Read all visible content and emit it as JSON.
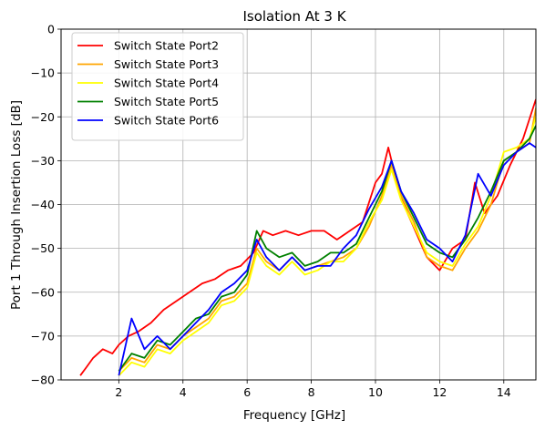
{
  "chart_data": {
    "type": "line",
    "title": "Isolation At 3 K",
    "xlabel": "Frequency [GHz]",
    "ylabel": "Port 1 Through Insertion Loss [dB]",
    "xlim": [
      0.2,
      15.0
    ],
    "ylim": [
      -80,
      0
    ],
    "xticks": [
      2,
      4,
      6,
      8,
      10,
      12,
      14
    ],
    "yticks": [
      0,
      -10,
      -20,
      -30,
      -40,
      -50,
      -60,
      -70,
      -80
    ],
    "grid": true,
    "legend_position": "top-left",
    "series": [
      {
        "name": "Switch State Port2",
        "color": "#ff0000",
        "x": [
          0.8,
          1.0,
          1.2,
          1.5,
          1.8,
          2.0,
          2.3,
          2.6,
          3.0,
          3.4,
          3.8,
          4.2,
          4.6,
          5.0,
          5.4,
          5.8,
          6.2,
          6.5,
          6.8,
          7.2,
          7.6,
          8.0,
          8.4,
          8.8,
          9.2,
          9.6,
          10.0,
          10.2,
          10.4,
          10.7,
          11.0,
          11.3,
          11.6,
          12.0,
          12.4,
          12.8,
          13.1,
          13.4,
          13.8,
          14.2,
          14.6,
          15.0
        ],
        "y": [
          -79,
          -77,
          -75,
          -73,
          -74,
          -72,
          -70,
          -69,
          -67,
          -64,
          -62,
          -60,
          -58,
          -57,
          -55,
          -54,
          -51,
          -46,
          -47,
          -46,
          -47,
          -46,
          -46,
          -48,
          -46,
          -44,
          -35,
          -33,
          -27,
          -36,
          -42,
          -47,
          -52,
          -55,
          -50,
          -48,
          -35,
          -42,
          -38,
          -31,
          -25,
          -16
        ]
      },
      {
        "name": "Switch State Port3",
        "color": "#ffa500",
        "x": [
          2.0,
          2.4,
          2.8,
          3.2,
          3.6,
          4.0,
          4.4,
          4.8,
          5.2,
          5.6,
          6.0,
          6.3,
          6.6,
          7.0,
          7.4,
          7.8,
          8.2,
          8.6,
          9.0,
          9.4,
          9.8,
          10.2,
          10.5,
          10.8,
          11.2,
          11.6,
          12.0,
          12.4,
          12.8,
          13.2,
          13.6,
          14.0,
          14.4,
          14.8,
          15.0
        ],
        "y": [
          -78,
          -75,
          -76,
          -72,
          -73,
          -70,
          -68,
          -66,
          -62,
          -61,
          -58,
          -50,
          -53,
          -55,
          -52,
          -55,
          -54,
          -53,
          -52,
          -50,
          -45,
          -38,
          -31,
          -38,
          -44,
          -52,
          -54,
          -55,
          -50,
          -46,
          -40,
          -30,
          -28,
          -26,
          -18
        ]
      },
      {
        "name": "Switch State Port4",
        "color": "#ffff00",
        "x": [
          2.0,
          2.4,
          2.8,
          3.2,
          3.6,
          4.0,
          4.4,
          4.8,
          5.2,
          5.6,
          6.0,
          6.3,
          6.6,
          7.0,
          7.4,
          7.8,
          8.2,
          8.6,
          9.0,
          9.4,
          9.8,
          10.2,
          10.5,
          10.8,
          11.2,
          11.6,
          12.0,
          12.4,
          12.8,
          13.2,
          13.6,
          14.0,
          14.4,
          14.8,
          15.0
        ],
        "y": [
          -79,
          -76,
          -77,
          -73,
          -74,
          -71,
          -69,
          -67,
          -63,
          -62,
          -59,
          -51,
          -54,
          -56,
          -53,
          -56,
          -55,
          -53,
          -53,
          -50,
          -44,
          -39,
          -32,
          -39,
          -45,
          -51,
          -53,
          -54,
          -49,
          -45,
          -38,
          -28,
          -27,
          -25,
          -20
        ]
      },
      {
        "name": "Switch State Port5",
        "color": "#008000",
        "x": [
          2.0,
          2.4,
          2.8,
          3.2,
          3.6,
          4.0,
          4.4,
          4.8,
          5.2,
          5.6,
          6.0,
          6.3,
          6.6,
          7.0,
          7.4,
          7.8,
          8.2,
          8.6,
          9.0,
          9.4,
          9.8,
          10.2,
          10.5,
          10.8,
          11.2,
          11.6,
          12.0,
          12.4,
          12.8,
          13.2,
          13.6,
          14.0,
          14.4,
          14.8,
          15.0
        ],
        "y": [
          -78,
          -74,
          -75,
          -71,
          -72,
          -69,
          -66,
          -65,
          -61,
          -60,
          -56,
          -46,
          -50,
          -52,
          -51,
          -54,
          -53,
          -51,
          -51,
          -49,
          -43,
          -37,
          -30,
          -37,
          -43,
          -49,
          -51,
          -52,
          -48,
          -43,
          -37,
          -30,
          -28,
          -25,
          -22
        ]
      },
      {
        "name": "Switch State Port6",
        "color": "#0000ff",
        "x": [
          2.0,
          2.4,
          2.8,
          3.2,
          3.6,
          4.0,
          4.4,
          4.8,
          5.2,
          5.6,
          6.0,
          6.3,
          6.6,
          7.0,
          7.4,
          7.8,
          8.2,
          8.6,
          9.0,
          9.4,
          9.8,
          10.2,
          10.5,
          10.8,
          11.2,
          11.6,
          12.0,
          12.4,
          12.8,
          13.2,
          13.6,
          14.0,
          14.4,
          14.8,
          15.0
        ],
        "y": [
          -79,
          -66,
          -73,
          -70,
          -73,
          -70,
          -67,
          -64,
          -60,
          -58,
          -55,
          -48,
          -52,
          -55,
          -52,
          -55,
          -54,
          -54,
          -50,
          -47,
          -41,
          -36,
          -30,
          -37,
          -42,
          -48,
          -50,
          -53,
          -47,
          -33,
          -38,
          -31,
          -28,
          -26,
          -27
        ]
      }
    ]
  }
}
